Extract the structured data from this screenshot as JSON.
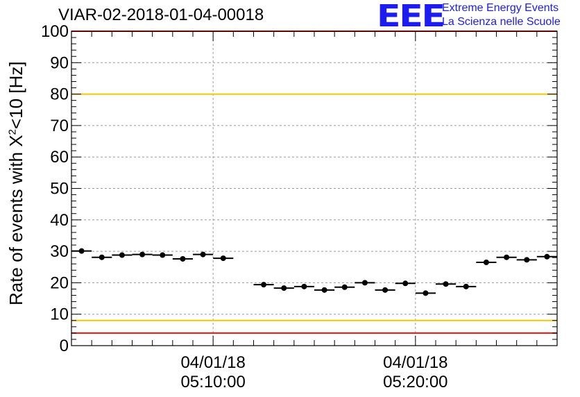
{
  "header": {
    "title": "VIAR-02-2018-01-04-00018",
    "logo_mark": "EEE",
    "logo_line1": "Extreme Energy Events",
    "logo_line2": "La Scienza nelle Scuole"
  },
  "colors": {
    "logo": "#1c1cf0",
    "red_line": "#ee1111",
    "yellow_line": "#f0c800",
    "marker": "#000000",
    "grid": "#9a9a9a"
  },
  "chart_data": {
    "type": "scatter",
    "title": "VIAR-02-2018-01-04-00018",
    "ylabel": "Rate of events with X",
    "ylabel_sup": "2",
    "ylabel_tail": "<10 [Hz]",
    "ylim": [
      0,
      100
    ],
    "yticks": [
      "0",
      "10",
      "20",
      "30",
      "40",
      "50",
      "60",
      "70",
      "80",
      "90",
      "100"
    ],
    "x_axis": "time",
    "xlim": [
      "2018-01-04 05:03:00",
      "2018-01-04 05:27:00"
    ],
    "xtick_labels": [
      {
        "time": "2018-01-04 05:10:00",
        "date": "04/01/18",
        "clock": "05:10:00"
      },
      {
        "time": "2018-01-04 05:20:00",
        "date": "04/01/18",
        "clock": "05:20:00"
      }
    ],
    "grid": true,
    "bin_width_minutes": 1,
    "series": [
      {
        "x": [
          "05:03:30",
          "05:04:30",
          "05:05:30",
          "05:06:30",
          "05:07:30",
          "05:08:30",
          "05:09:30",
          "05:10:30",
          "05:11:30",
          "05:12:30",
          "05:13:30",
          "05:14:30",
          "05:15:30",
          "05:16:30",
          "05:17:30",
          "05:18:30",
          "05:19:30",
          "05:20:30",
          "05:21:30",
          "05:22:30",
          "05:23:30",
          "05:24:30",
          "05:25:30",
          "05:26:30"
        ],
        "y": [
          30.1,
          28.1,
          28.8,
          29.0,
          28.8,
          27.6,
          29.0,
          27.8,
          null,
          19.4,
          18.3,
          18.8,
          17.7,
          18.6,
          20.0,
          17.7,
          19.8,
          16.7,
          19.6,
          18.8,
          26.5,
          28.1,
          27.3,
          28.3
        ]
      }
    ],
    "reference_lines": [
      {
        "y": 100,
        "color": "red"
      },
      {
        "y": 80,
        "color": "yellow"
      },
      {
        "y": 8,
        "color": "yellow"
      },
      {
        "y": 4,
        "color": "red"
      }
    ]
  }
}
